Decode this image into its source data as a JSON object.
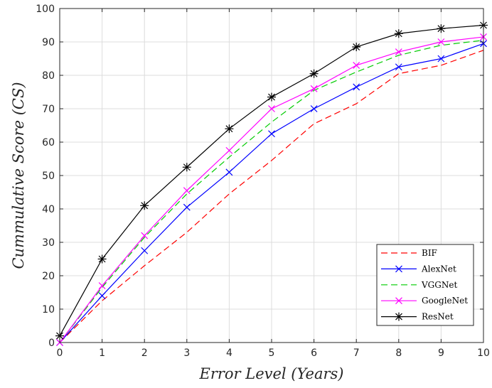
{
  "chart_data": {
    "type": "line",
    "title": "",
    "xlabel": "Error Level  (Years)",
    "ylabel": "Cummulative Score (CS)",
    "xlim": [
      0,
      10
    ],
    "ylim": [
      0,
      100
    ],
    "x_ticks": [
      0,
      1,
      2,
      3,
      4,
      5,
      6,
      7,
      8,
      9,
      10
    ],
    "y_ticks": [
      0,
      10,
      20,
      30,
      40,
      50,
      60,
      70,
      80,
      90,
      100
    ],
    "grid": true,
    "legend_position": "bottom-right",
    "x": [
      0,
      1,
      2,
      3,
      4,
      5,
      6,
      7,
      8,
      9,
      10
    ],
    "series": [
      {
        "name": "BIF",
        "color": "#ff0000",
        "style": "dashed",
        "marker": "none",
        "values": [
          0,
          12.5,
          23,
          33,
          44.5,
          54.5,
          65.5,
          71.5,
          80.5,
          83,
          87.5
        ]
      },
      {
        "name": "AlexNet",
        "color": "#0000ff",
        "style": "solid",
        "marker": "x",
        "values": [
          0,
          14,
          27.5,
          40.5,
          51,
          62.5,
          70,
          76.5,
          82.5,
          85,
          89.5
        ]
      },
      {
        "name": "VGGNet",
        "color": "#00cc00",
        "style": "dashed",
        "marker": "none",
        "values": [
          0,
          16.5,
          31.5,
          44.5,
          55.5,
          66,
          75.5,
          81,
          86,
          89,
          90.5
        ]
      },
      {
        "name": "GoogleNet",
        "color": "#ff00ff",
        "style": "solid",
        "marker": "x",
        "values": [
          0,
          17,
          32,
          45.5,
          57.5,
          70,
          76,
          83,
          87,
          90,
          91.5
        ]
      },
      {
        "name": "ResNet",
        "color": "#000000",
        "style": "solid",
        "marker": "star",
        "values": [
          2,
          25,
          41,
          52.5,
          64,
          73.5,
          80.5,
          88.5,
          92.5,
          94,
          95
        ]
      }
    ]
  }
}
